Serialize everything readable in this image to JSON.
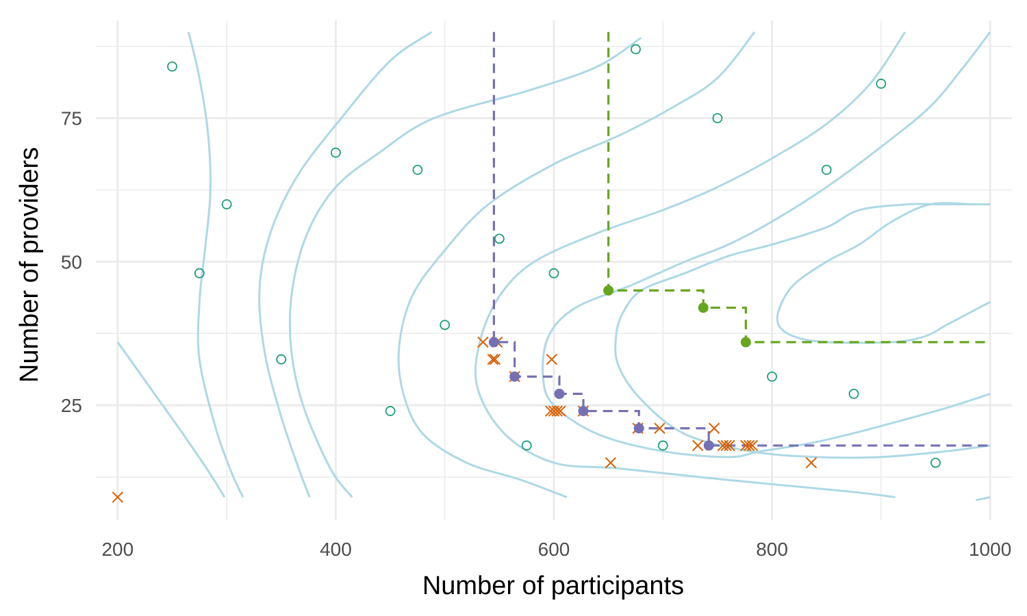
{
  "chart_data": {
    "type": "scatter",
    "title": "",
    "xlabel": "Number of participants",
    "ylabel": "Number of providers",
    "xlim": [
      180,
      1020
    ],
    "ylim": [
      5,
      92
    ],
    "x_ticks": [
      200,
      400,
      600,
      800,
      1000
    ],
    "y_ticks": [
      25,
      50,
      75
    ],
    "x_minor": [
      300,
      500,
      700,
      900
    ],
    "y_minor": [
      12.5,
      37.5,
      62.5,
      87.5
    ],
    "grid": true,
    "legend": "none",
    "colors": {
      "open_points": "#1b9e77",
      "crosses": "#d95f02",
      "purple_frontier": "#7570b3",
      "green_frontier": "#66a61e",
      "contours": "#add8e6",
      "grid": "#ebebeb"
    },
    "open_points": [
      {
        "x": 250,
        "y": 84
      },
      {
        "x": 275,
        "y": 48
      },
      {
        "x": 300,
        "y": 60
      },
      {
        "x": 350,
        "y": 33
      },
      {
        "x": 400,
        "y": 69
      },
      {
        "x": 450,
        "y": 24
      },
      {
        "x": 475,
        "y": 66
      },
      {
        "x": 500,
        "y": 39
      },
      {
        "x": 550,
        "y": 54
      },
      {
        "x": 575,
        "y": 18
      },
      {
        "x": 600,
        "y": 48
      },
      {
        "x": 675,
        "y": 87
      },
      {
        "x": 700,
        "y": 18
      },
      {
        "x": 750,
        "y": 75
      },
      {
        "x": 800,
        "y": 30
      },
      {
        "x": 850,
        "y": 66
      },
      {
        "x": 875,
        "y": 27
      },
      {
        "x": 900,
        "y": 81
      },
      {
        "x": 950,
        "y": 15
      }
    ],
    "crosses": [
      {
        "x": 200,
        "y": 9
      },
      {
        "x": 535,
        "y": 36
      },
      {
        "x": 544,
        "y": 33
      },
      {
        "x": 546,
        "y": 33
      },
      {
        "x": 548,
        "y": 36
      },
      {
        "x": 564,
        "y": 30
      },
      {
        "x": 597,
        "y": 24
      },
      {
        "x": 598,
        "y": 33
      },
      {
        "x": 600,
        "y": 24
      },
      {
        "x": 603,
        "y": 24
      },
      {
        "x": 606,
        "y": 24
      },
      {
        "x": 627,
        "y": 24
      },
      {
        "x": 652,
        "y": 15
      },
      {
        "x": 677,
        "y": 21
      },
      {
        "x": 697,
        "y": 21
      },
      {
        "x": 732,
        "y": 18
      },
      {
        "x": 747,
        "y": 21
      },
      {
        "x": 755,
        "y": 18
      },
      {
        "x": 758,
        "y": 18
      },
      {
        "x": 761,
        "y": 18
      },
      {
        "x": 776,
        "y": 18
      },
      {
        "x": 779,
        "y": 18
      },
      {
        "x": 782,
        "y": 18
      },
      {
        "x": 836,
        "y": 15
      }
    ],
    "purple_frontier": [
      {
        "x": 545,
        "y": 36
      },
      {
        "x": 564,
        "y": 30
      },
      {
        "x": 605,
        "y": 27
      },
      {
        "x": 627,
        "y": 24
      },
      {
        "x": 678,
        "y": 21
      },
      {
        "x": 742,
        "y": 18
      }
    ],
    "purple_step_end": {
      "x": 1000,
      "y": 18
    },
    "purple_step_top": 90,
    "green_frontier": [
      {
        "x": 650,
        "y": 45
      },
      {
        "x": 737,
        "y": 42
      },
      {
        "x": 776,
        "y": 36
      }
    ],
    "green_step_end": {
      "x": 1000,
      "y": 36
    },
    "green_step_top": 90,
    "contours": [
      [
        [
          200,
          36
        ],
        [
          230,
          28
        ],
        [
          260,
          20
        ],
        [
          285,
          13
        ],
        [
          298,
          9
        ]
      ],
      [
        [
          265,
          90
        ],
        [
          275,
          82
        ],
        [
          283,
          72
        ],
        [
          285,
          62
        ],
        [
          280,
          52
        ],
        [
          275,
          43
        ],
        [
          275,
          33
        ],
        [
          290,
          21
        ],
        [
          305,
          13
        ],
        [
          315,
          9
        ]
      ],
      [
        [
          488,
          90
        ],
        [
          450,
          85
        ],
        [
          405,
          75
        ],
        [
          365,
          65
        ],
        [
          340,
          55
        ],
        [
          330,
          45
        ],
        [
          335,
          34
        ],
        [
          350,
          23
        ],
        [
          366,
          14
        ],
        [
          376,
          9
        ]
      ],
      [
        [
          415,
          9
        ],
        [
          395,
          14
        ],
        [
          370,
          25
        ],
        [
          359,
          35
        ],
        [
          360,
          45
        ],
        [
          374,
          55
        ],
        [
          400,
          63
        ],
        [
          440,
          69
        ],
        [
          490,
          75
        ],
        [
          580,
          80
        ],
        [
          640,
          84
        ],
        [
          680,
          89
        ]
      ],
      [
        [
          612,
          9
        ],
        [
          570,
          12
        ],
        [
          520,
          15
        ],
        [
          480,
          20
        ],
        [
          462,
          27
        ],
        [
          458,
          35
        ],
        [
          470,
          44
        ],
        [
          500,
          52
        ],
        [
          540,
          60
        ],
        [
          600,
          67
        ],
        [
          660,
          72
        ],
        [
          710,
          77
        ],
        [
          750,
          82
        ],
        [
          784,
          90
        ]
      ],
      [
        [
          913,
          9
        ],
        [
          870,
          10
        ],
        [
          760,
          12
        ],
        [
          660,
          14
        ],
        [
          600,
          15
        ],
        [
          555,
          20
        ],
        [
          530,
          28
        ],
        [
          532,
          36
        ],
        [
          550,
          44
        ],
        [
          582,
          50
        ],
        [
          640,
          55
        ],
        [
          700,
          59
        ],
        [
          750,
          63
        ],
        [
          800,
          68
        ],
        [
          850,
          74
        ],
        [
          890,
          81
        ],
        [
          922,
          90
        ]
      ],
      [
        [
          1000,
          27
        ],
        [
          950,
          24
        ],
        [
          850,
          19
        ],
        [
          790,
          17
        ],
        [
          760,
          16
        ],
        [
          700,
          17
        ],
        [
          640,
          20
        ],
        [
          600,
          25
        ],
        [
          590,
          30
        ],
        [
          595,
          37
        ],
        [
          620,
          42
        ],
        [
          672,
          46
        ],
        [
          720,
          50
        ],
        [
          760,
          53
        ],
        [
          800,
          57
        ],
        [
          850,
          63
        ],
        [
          900,
          70
        ],
        [
          945,
          77
        ],
        [
          976,
          84
        ],
        [
          1000,
          90
        ]
      ],
      [
        [
          1000,
          18
        ],
        [
          960,
          17
        ],
        [
          900,
          16
        ],
        [
          840,
          16
        ],
        [
          780,
          17
        ],
        [
          720,
          20
        ],
        [
          680,
          26
        ],
        [
          659,
          32
        ],
        [
          657,
          37
        ],
        [
          663,
          41
        ],
        [
          680,
          45
        ],
        [
          720,
          48
        ],
        [
          760,
          51
        ],
        [
          800,
          53
        ],
        [
          850,
          56
        ],
        [
          880,
          59
        ],
        [
          925,
          60
        ],
        [
          950,
          60
        ],
        [
          985,
          60
        ],
        [
          1000,
          60
        ]
      ],
      [
        [
          1000,
          43
        ],
        [
          980,
          41
        ],
        [
          960,
          39
        ],
        [
          940,
          37
        ],
        [
          910,
          36
        ],
        [
          850,
          36
        ],
        [
          820,
          37
        ],
        [
          806,
          39
        ],
        [
          807,
          42
        ],
        [
          820,
          46
        ],
        [
          850,
          50
        ],
        [
          880,
          53
        ],
        [
          910,
          57
        ],
        [
          945,
          60
        ],
        [
          985,
          60
        ],
        [
          1000,
          60
        ]
      ],
      [
        [
          987,
          8.5
        ],
        [
          1000,
          9
        ]
      ]
    ]
  }
}
